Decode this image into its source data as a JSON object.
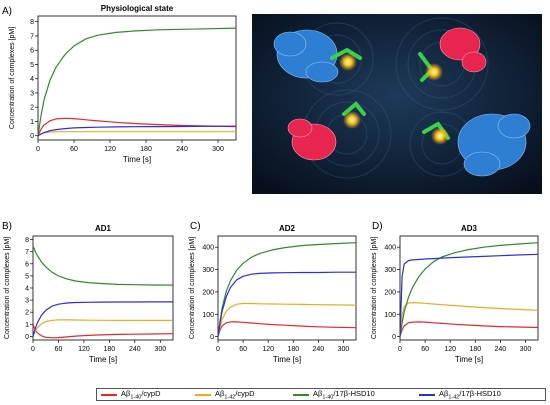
{
  "panel_labels": [
    "A)",
    "B)",
    "C)",
    "D)"
  ],
  "colors": {
    "red": "#e8262b",
    "orange": "#f0a824",
    "green": "#2e8a2b",
    "blue": "#2c2ce0"
  },
  "legend": {
    "items": [
      {
        "base": "Aβ",
        "sub": "1-40",
        "rest": "/cypD",
        "color": "#e8262b"
      },
      {
        "base": "Aβ",
        "sub": "1-42",
        "rest": "/cypD",
        "color": "#f0a824"
      },
      {
        "base": "Aβ",
        "sub": "1-40",
        "rest": "/17β-HSD10",
        "color": "#2e8a2b"
      },
      {
        "base": "Aβ",
        "sub": "1-42",
        "rest": "/17β-HSD10",
        "color": "#2c2ce0"
      }
    ]
  },
  "image": {
    "icon": "protein-complex-illustration"
  },
  "chart_data": [
    {
      "type": "line",
      "title": "Physiological state",
      "xlabel": "Time [s]",
      "ylabel": "Concentration of complexes [pM]",
      "xlim": [
        0,
        330
      ],
      "ylim": [
        -0.3,
        8.4
      ],
      "xticks": [
        0,
        60,
        120,
        180,
        240,
        300
      ],
      "yticks": [
        0,
        1,
        2,
        3,
        4,
        5,
        6,
        7,
        8
      ],
      "x": [
        0,
        5,
        10,
        20,
        30,
        45,
        60,
        80,
        100,
        130,
        160,
        200,
        240,
        280,
        330
      ],
      "series": [
        {
          "color": "#e8262b",
          "values": [
            0,
            0.45,
            0.75,
            1.05,
            1.18,
            1.22,
            1.2,
            1.12,
            1.04,
            0.94,
            0.86,
            0.78,
            0.72,
            0.68,
            0.64
          ]
        },
        {
          "color": "#f0a824",
          "values": [
            0,
            0.12,
            0.2,
            0.26,
            0.28,
            0.28,
            0.28,
            0.28,
            0.28,
            0.28,
            0.28,
            0.28,
            0.28,
            0.28,
            0.28
          ]
        },
        {
          "color": "#2e8a2b",
          "values": [
            0,
            1.4,
            2.5,
            3.9,
            4.8,
            5.7,
            6.3,
            6.8,
            7.05,
            7.25,
            7.35,
            7.43,
            7.47,
            7.5,
            7.55
          ]
        },
        {
          "color": "#2c2ce0",
          "values": [
            0,
            0.12,
            0.22,
            0.35,
            0.43,
            0.5,
            0.55,
            0.58,
            0.6,
            0.62,
            0.63,
            0.64,
            0.65,
            0.66,
            0.67
          ]
        }
      ]
    },
    {
      "type": "line",
      "title": "AD1",
      "xlabel": "Time [s]",
      "ylabel": "Concentration of complexes [pM]",
      "xlim": [
        0,
        330
      ],
      "ylim": [
        -0.3,
        8.3
      ],
      "xticks": [
        0,
        60,
        120,
        180,
        240,
        300
      ],
      "yticks": [
        0,
        1,
        2,
        3,
        4,
        5,
        6,
        7,
        8
      ],
      "x": [
        0,
        5,
        10,
        20,
        30,
        45,
        60,
        80,
        100,
        130,
        160,
        200,
        240,
        280,
        330
      ],
      "series": [
        {
          "color": "#e8262b",
          "values": [
            1.0,
            0.55,
            0.3,
            0.05,
            -0.08,
            -0.12,
            -0.1,
            -0.04,
            0.02,
            0.08,
            0.12,
            0.16,
            0.18,
            0.2,
            0.22
          ]
        },
        {
          "color": "#f0a824",
          "values": [
            0.0,
            0.4,
            0.7,
            1.05,
            1.22,
            1.33,
            1.36,
            1.36,
            1.35,
            1.34,
            1.33,
            1.32,
            1.32,
            1.32,
            1.32
          ]
        },
        {
          "color": "#2e8a2b",
          "values": [
            7.5,
            7.05,
            6.7,
            6.15,
            5.75,
            5.3,
            5.0,
            4.75,
            4.58,
            4.45,
            4.37,
            4.3,
            4.27,
            4.25,
            4.24
          ]
        },
        {
          "color": "#2c2ce0",
          "values": [
            0.0,
            0.6,
            1.1,
            1.75,
            2.15,
            2.5,
            2.66,
            2.76,
            2.8,
            2.82,
            2.83,
            2.84,
            2.84,
            2.85,
            2.85
          ]
        }
      ]
    },
    {
      "type": "line",
      "title": "AD2",
      "xlabel": "Time [s]",
      "ylabel": "Concentration of complexes [pM]",
      "xlim": [
        0,
        330
      ],
      "ylim": [
        -15,
        450
      ],
      "xticks": [
        0,
        60,
        120,
        180,
        240,
        300
      ],
      "yticks": [
        0,
        100,
        200,
        300,
        400
      ],
      "x": [
        0,
        5,
        10,
        20,
        30,
        45,
        60,
        80,
        100,
        130,
        160,
        200,
        240,
        280,
        330
      ],
      "series": [
        {
          "color": "#e8262b",
          "values": [
            0,
            30,
            48,
            62,
            66,
            66,
            64,
            61,
            58,
            54,
            51,
            47,
            44,
            42,
            40
          ]
        },
        {
          "color": "#f0a824",
          "values": [
            0,
            45,
            78,
            115,
            132,
            145,
            148,
            148,
            147,
            146,
            145,
            144,
            143,
            142,
            141
          ]
        },
        {
          "color": "#2e8a2b",
          "values": [
            0,
            70,
            130,
            205,
            250,
            298,
            328,
            355,
            372,
            388,
            398,
            407,
            412,
            416,
            420
          ]
        },
        {
          "color": "#2c2ce0",
          "values": [
            0,
            62,
            115,
            180,
            220,
            254,
            270,
            279,
            283,
            285,
            286,
            287,
            287,
            288,
            288
          ]
        }
      ]
    },
    {
      "type": "line",
      "title": "AD3",
      "xlabel": "Time [s]",
      "ylabel": "Concentration of complexes [pM]",
      "xlim": [
        0,
        330
      ],
      "ylim": [
        -15,
        450
      ],
      "xticks": [
        0,
        60,
        120,
        180,
        240,
        300
      ],
      "yticks": [
        0,
        100,
        200,
        300,
        400
      ],
      "x": [
        0,
        5,
        10,
        20,
        30,
        45,
        60,
        80,
        100,
        130,
        160,
        200,
        240,
        280,
        330
      ],
      "series": [
        {
          "color": "#e8262b",
          "values": [
            0,
            30,
            48,
            62,
            65,
            66,
            65,
            62,
            59,
            55,
            52,
            48,
            45,
            43,
            41
          ]
        },
        {
          "color": "#f0a824",
          "values": [
            0,
            95,
            135,
            150,
            152,
            151,
            149,
            146,
            143,
            139,
            135,
            130,
            126,
            122,
            118
          ]
        },
        {
          "color": "#2e8a2b",
          "values": [
            0,
            60,
            110,
            175,
            220,
            268,
            302,
            335,
            356,
            375,
            388,
            400,
            408,
            414,
            420
          ]
        },
        {
          "color": "#2c2ce0",
          "values": [
            0,
            270,
            325,
            340,
            343,
            345,
            347,
            349,
            351,
            354,
            356,
            359,
            362,
            365,
            368
          ]
        }
      ]
    }
  ]
}
